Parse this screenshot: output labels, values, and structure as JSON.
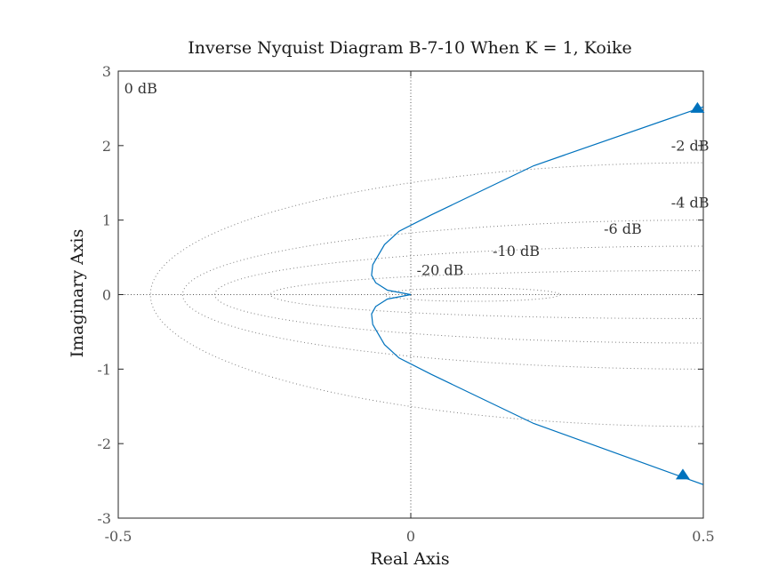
{
  "chart_data": {
    "type": "line",
    "title": "Inverse Nyquist Diagram B-7-10 When K = 1, Koike",
    "xlabel": "Real Axis",
    "ylabel": "Imaginary Axis",
    "xlim": [
      -0.5,
      0.5
    ],
    "ylim": [
      -3,
      3
    ],
    "x_ticks": [
      -0.5,
      0,
      0.5
    ],
    "x_tick_labels": [
      "-0.5",
      "0",
      "0.5"
    ],
    "y_ticks": [
      -3,
      -2,
      -1,
      0,
      1,
      2,
      3
    ],
    "y_tick_labels": [
      "-3",
      "-2",
      "-1",
      "0",
      "1",
      "2",
      "3"
    ],
    "grid": "dotted",
    "series": [
      {
        "color": "#0072BD",
        "points": [
          [
            0.5,
            2.52
          ],
          [
            0.21,
            1.73
          ],
          [
            0.035,
            1.07
          ],
          [
            -0.02,
            0.85
          ],
          [
            -0.045,
            0.67
          ],
          [
            -0.065,
            0.4
          ],
          [
            -0.067,
            0.26
          ],
          [
            -0.06,
            0.16
          ],
          [
            -0.04,
            0.06
          ],
          [
            0,
            0
          ],
          [
            -0.04,
            -0.06
          ],
          [
            -0.06,
            -0.16
          ],
          [
            -0.067,
            -0.26
          ],
          [
            -0.065,
            -0.4
          ],
          [
            -0.045,
            -0.67
          ],
          [
            -0.02,
            -0.85
          ],
          [
            0.035,
            -1.07
          ],
          [
            0.21,
            -1.73
          ],
          [
            0.5,
            -2.55
          ]
        ],
        "arrows": [
          [
            0.49,
            2.5
          ],
          [
            0.465,
            -2.42
          ]
        ]
      }
    ],
    "contours": [
      {
        "label": "0 dB",
        "center": [
          0.5,
          0
        ],
        "x_left": null,
        "label_at": [
          -0.49,
          2.7
        ]
      },
      {
        "label": "-2 dB",
        "center": [
          0.5,
          0
        ],
        "x_left": -0.445,
        "y_at_right": 1.77,
        "label_at": [
          0.445,
          1.93
        ]
      },
      {
        "label": "-4 dB",
        "center": [
          0.5,
          0
        ],
        "x_left": -0.39,
        "y_at_right": 1.0,
        "label_at": [
          0.445,
          1.17
        ]
      },
      {
        "label": "-6 dB",
        "center": [
          0.5,
          0
        ],
        "x_left": -0.335,
        "y_at_right": 0.65,
        "label_at": [
          0.33,
          0.82
        ]
      },
      {
        "label": "-10 dB",
        "center": [
          0.46,
          0
        ],
        "x_left": -0.24,
        "y_at_right": 0.32,
        "label_at": [
          0.14,
          0.52
        ]
      },
      {
        "label": "-20 dB",
        "center": [
          0.105,
          0
        ],
        "x_left": -0.045,
        "y_at_right": 0.09,
        "label_at": [
          0.01,
          0.26
        ]
      }
    ]
  }
}
